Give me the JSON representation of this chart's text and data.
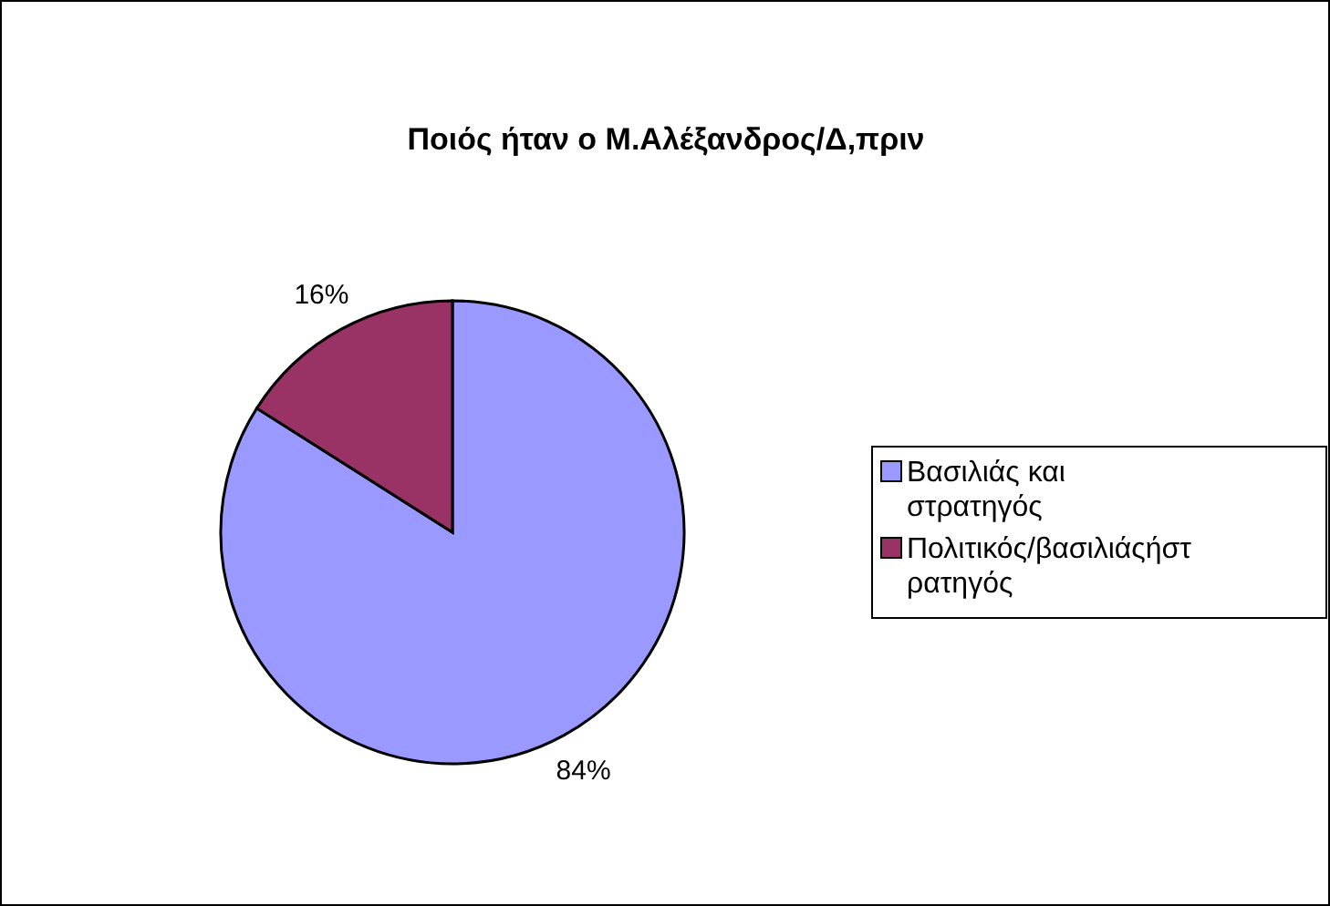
{
  "chart_data": {
    "type": "pie",
    "title": "Ποιός ήταν ο Μ.Αλέξανδρος/Δ,πριν",
    "categories": [
      "Βασιλιάς και στρατηγός",
      "Πολιτικός/βασιλιάςήστρατηγός"
    ],
    "values": [
      84,
      16
    ],
    "colors": [
      "#9999ff",
      "#993366"
    ],
    "value_labels": [
      "84%",
      "16%"
    ],
    "legend": "right"
  }
}
